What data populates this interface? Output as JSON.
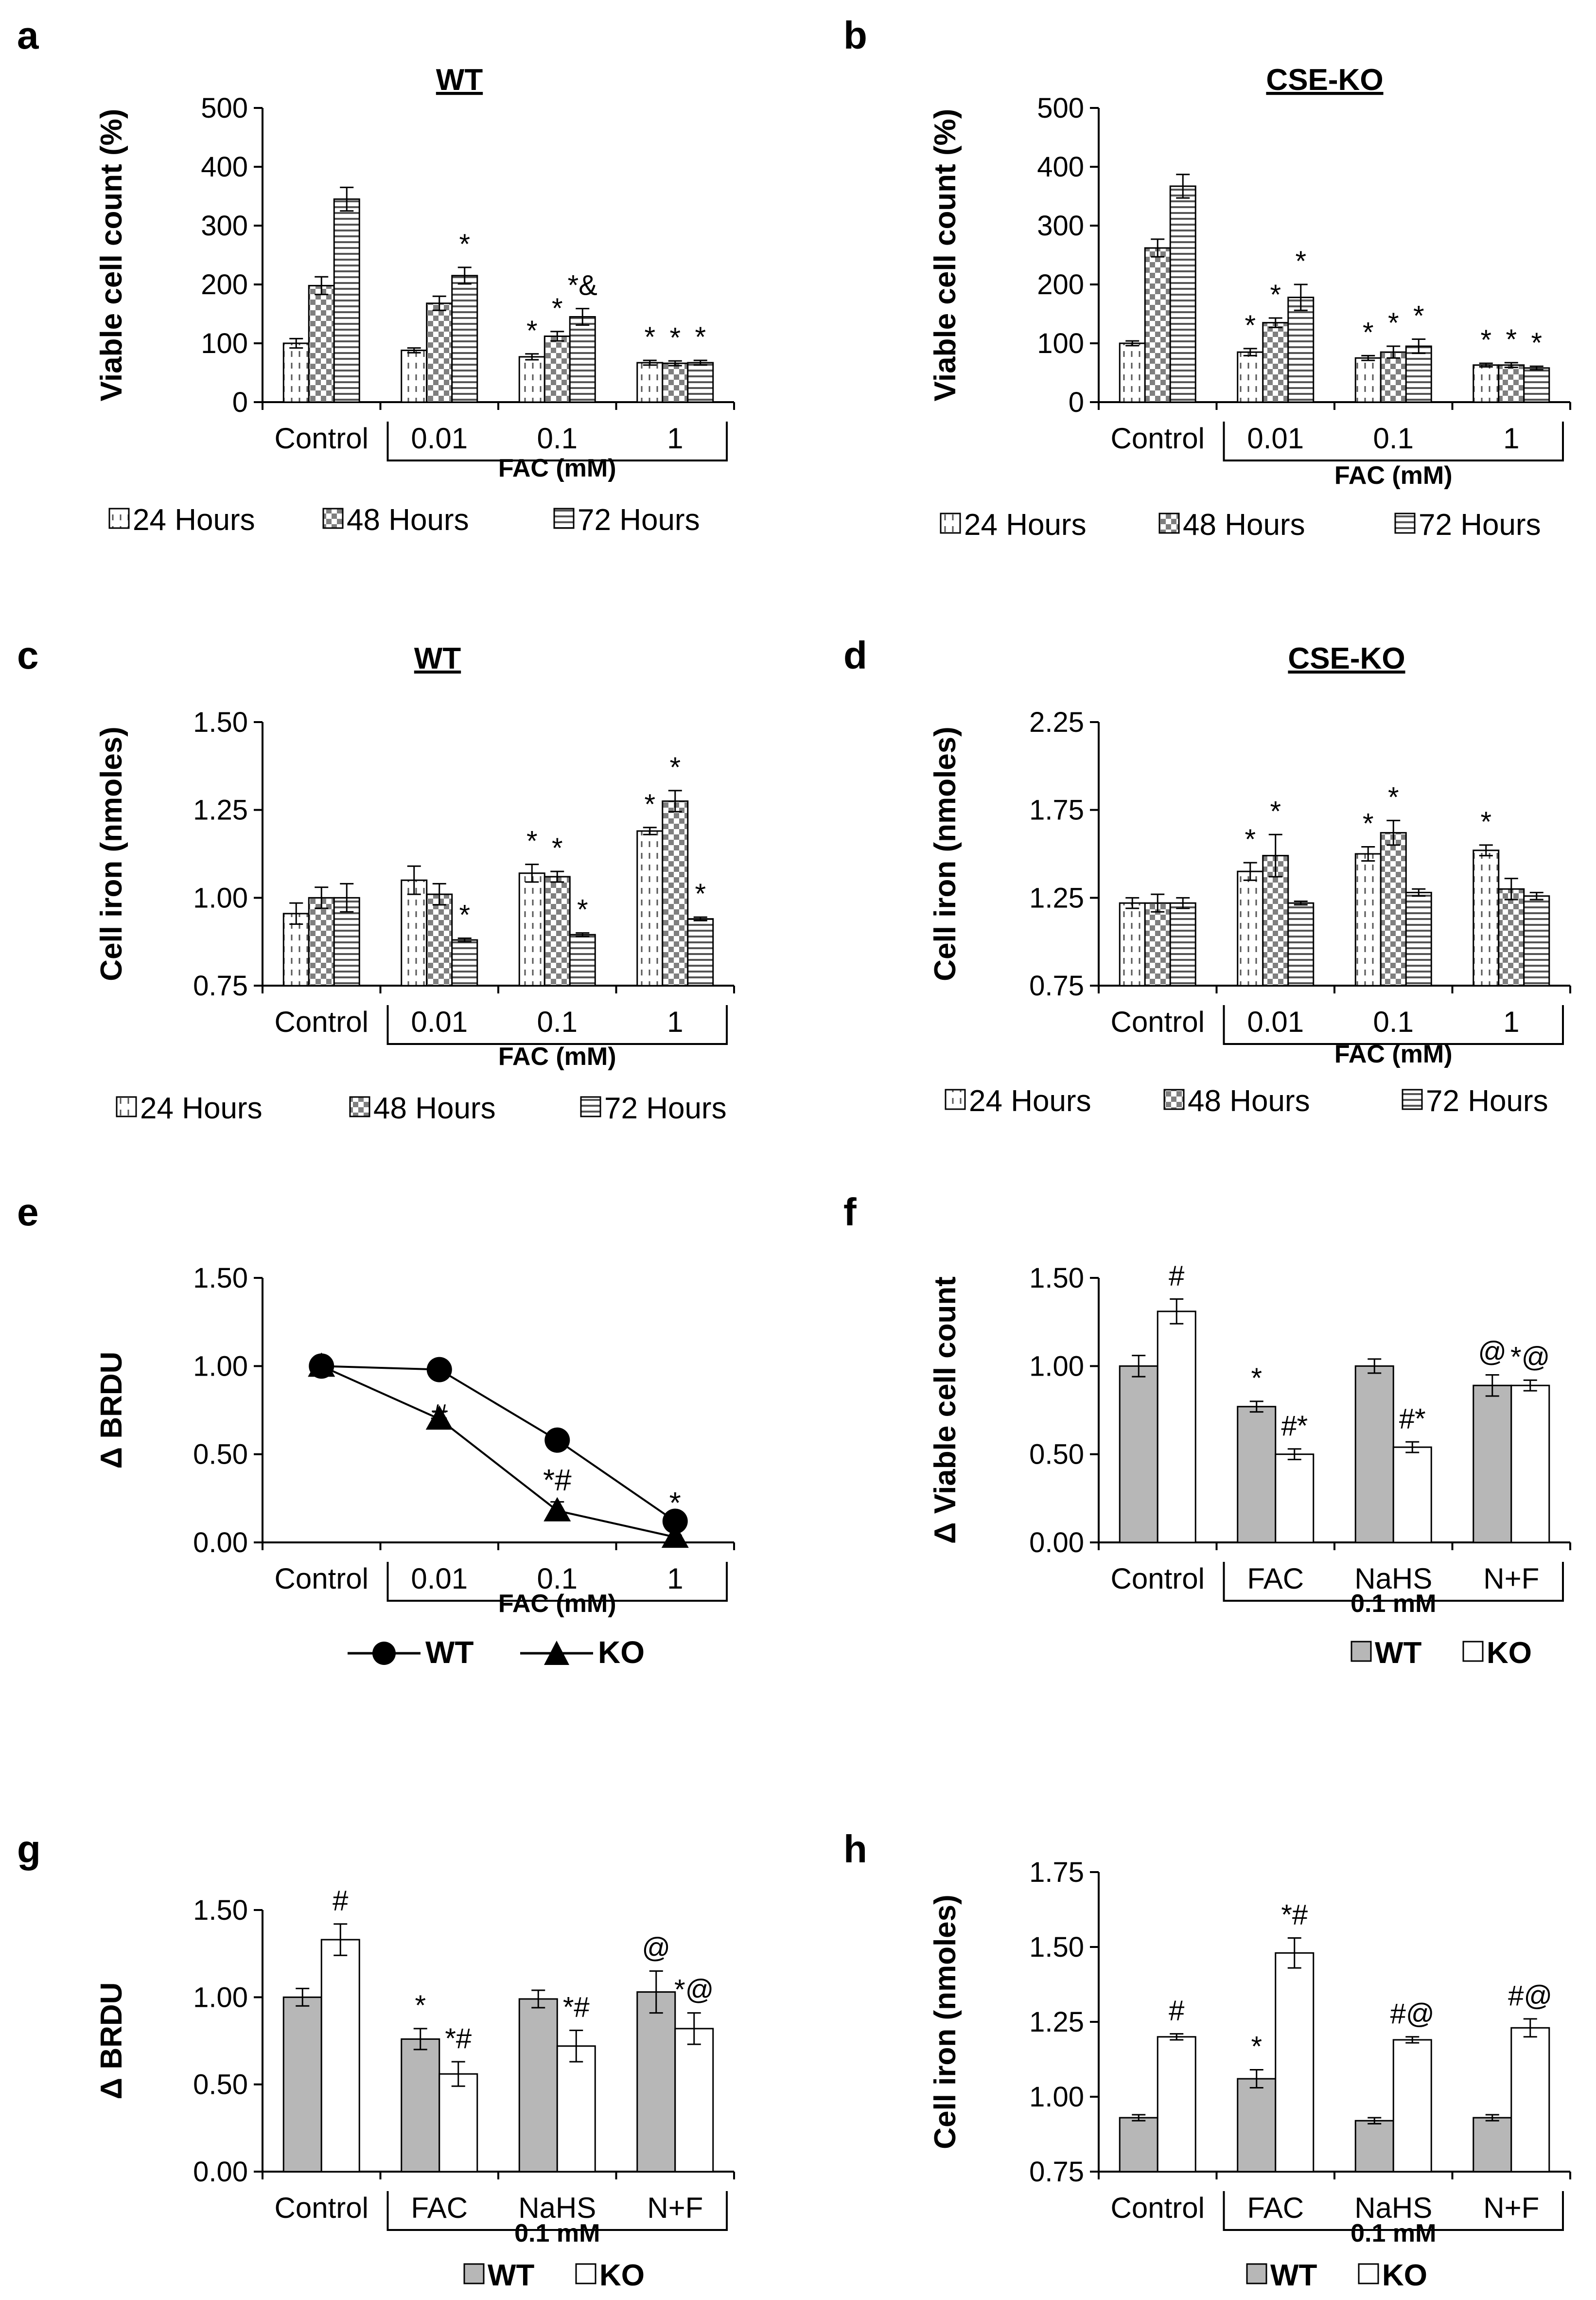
{
  "colors": {
    "axis": "#000000",
    "gray_fill": "#b7b7b7",
    "white_fill": "#ffffff",
    "line": "#000000"
  },
  "chart_data": [
    {
      "id": "a",
      "type": "bar",
      "panel_label": "a",
      "title": "WT",
      "ylabel": "Viable cell count (%)",
      "ylim": [
        0,
        500
      ],
      "yticks": [
        "0",
        "100",
        "200",
        "300",
        "400",
        "500"
      ],
      "categories": [
        "Control",
        "0.01",
        "0.1",
        "1"
      ],
      "group_label": "FAC (mM)",
      "series": [
        {
          "name": "24 Hours",
          "pattern": "vdash",
          "values": [
            100,
            88,
            77,
            67
          ],
          "errors": [
            8,
            4,
            5,
            4
          ]
        },
        {
          "name": "48 Hours",
          "pattern": "check",
          "values": [
            198,
            168,
            112,
            66
          ],
          "errors": [
            15,
            12,
            8,
            4
          ]
        },
        {
          "name": "72 Hours",
          "pattern": "hstripe",
          "values": [
            345,
            215,
            145,
            67
          ],
          "errors": [
            20,
            14,
            14,
            4
          ]
        }
      ],
      "annotations": [
        [
          "",
          "",
          ""
        ],
        [
          "",
          "",
          "*"
        ],
        [
          "*",
          "*",
          "*&"
        ],
        [
          "*",
          "*",
          "*"
        ]
      ],
      "legend": [
        "24 Hours",
        "48 Hours",
        "72 Hours"
      ]
    },
    {
      "id": "b",
      "type": "bar",
      "panel_label": "b",
      "title": "CSE-KO",
      "ylabel": "Viable cell count (%)",
      "ylim": [
        0,
        500
      ],
      "yticks": [
        "0",
        "100",
        "200",
        "300",
        "400",
        "500"
      ],
      "categories": [
        "Control",
        "0.01",
        "0.1",
        "1"
      ],
      "group_label": "FAC (mM)",
      "series": [
        {
          "name": "24 Hours",
          "pattern": "vdash",
          "values": [
            100,
            85,
            75,
            63
          ],
          "errors": [
            4,
            6,
            4,
            3
          ]
        },
        {
          "name": "48 Hours",
          "pattern": "check",
          "values": [
            262,
            135,
            85,
            63
          ],
          "errors": [
            15,
            8,
            10,
            4
          ]
        },
        {
          "name": "72 Hours",
          "pattern": "hstripe",
          "values": [
            367,
            178,
            95,
            58
          ],
          "errors": [
            20,
            22,
            12,
            3
          ]
        }
      ],
      "annotations": [
        [
          "",
          "",
          ""
        ],
        [
          "*",
          "*",
          "*"
        ],
        [
          "*",
          "*",
          "*"
        ],
        [
          "*",
          "*",
          "*"
        ]
      ],
      "legend": [
        "24 Hours",
        "48 Hours",
        "72 Hours"
      ]
    },
    {
      "id": "c",
      "type": "bar",
      "panel_label": "c",
      "title": "WT",
      "ylabel": "Cell iron (nmoles)",
      "ylim": [
        0.75,
        1.5
      ],
      "yticks": [
        "0.75",
        "1.00",
        "1.25",
        "1.50"
      ],
      "categories": [
        "Control",
        "0.01",
        "0.1",
        "1"
      ],
      "group_label": "FAC (mM)",
      "series": [
        {
          "name": "24 Hours",
          "pattern": "vdash",
          "values": [
            0.955,
            1.05,
            1.07,
            1.19
          ],
          "errors": [
            0.03,
            0.04,
            0.025,
            0.01
          ]
        },
        {
          "name": "48 Hours",
          "pattern": "check",
          "values": [
            1.0,
            1.01,
            1.06,
            1.275
          ],
          "errors": [
            0.03,
            0.03,
            0.015,
            0.03
          ]
        },
        {
          "name": "72 Hours",
          "pattern": "hstripe",
          "values": [
            1.0,
            0.88,
            0.895,
            0.94
          ],
          "errors": [
            0.04,
            0.005,
            0.005,
            0.005
          ]
        }
      ],
      "annotations": [
        [
          "",
          "",
          ""
        ],
        [
          "",
          "",
          "*"
        ],
        [
          "*",
          "*",
          "*"
        ],
        [
          "*",
          "*",
          "*"
        ]
      ],
      "legend": [
        "24 Hours",
        "48 Hours",
        "72 Hours"
      ]
    },
    {
      "id": "d",
      "type": "bar",
      "panel_label": "d",
      "title": "CSE-KO",
      "ylabel": "Cell iron (nmoles)",
      "ylim": [
        0.75,
        2.25
      ],
      "yticks": [
        "0.75",
        "1.25",
        "1.75",
        "2.25"
      ],
      "categories": [
        "Control",
        "0.01",
        "0.1",
        "1"
      ],
      "group_label": "FAC (mM)",
      "series": [
        {
          "name": "24 Hours",
          "pattern": "vdash",
          "values": [
            1.22,
            1.4,
            1.5,
            1.52
          ],
          "errors": [
            0.03,
            0.05,
            0.04,
            0.03
          ]
        },
        {
          "name": "48 Hours",
          "pattern": "check",
          "values": [
            1.22,
            1.49,
            1.62,
            1.3
          ],
          "errors": [
            0.05,
            0.12,
            0.07,
            0.06
          ]
        },
        {
          "name": "72 Hours",
          "pattern": "hstripe",
          "values": [
            1.22,
            1.22,
            1.28,
            1.26
          ],
          "errors": [
            0.03,
            0.01,
            0.02,
            0.02
          ]
        }
      ],
      "annotations": [
        [
          "",
          "",
          ""
        ],
        [
          "*",
          "*",
          ""
        ],
        [
          "*",
          "*",
          ""
        ],
        [
          "*",
          "",
          ""
        ]
      ],
      "legend": [
        "24 Hours",
        "48 Hours",
        "72 Hours"
      ]
    },
    {
      "id": "e",
      "type": "line",
      "panel_label": "e",
      "title": "",
      "ylabel": "Δ BRDU",
      "ylim": [
        0,
        1.5
      ],
      "yticks": [
        "0.00",
        "0.50",
        "1.00",
        "1.50"
      ],
      "categories": [
        "Control",
        "0.01",
        "0.1",
        "1"
      ],
      "group_label": "FAC (mM)",
      "series": [
        {
          "name": "WT",
          "marker": "circle",
          "values": [
            1.0,
            0.98,
            0.58,
            0.12
          ],
          "errors": [
            0.04,
            0.02,
            0.05,
            0.02
          ]
        },
        {
          "name": "KO",
          "marker": "triangle",
          "values": [
            1.0,
            0.7,
            0.18,
            0.03
          ],
          "errors": [
            0.04,
            0.04,
            0.05,
            0.01
          ]
        }
      ],
      "annotations": [
        {
          "category": 1,
          "value": 0.72,
          "text": "#"
        },
        {
          "category": 2,
          "value": 0.35,
          "text": "*#"
        },
        {
          "category": 3,
          "value": 0.22,
          "text": "*"
        }
      ],
      "legend": [
        "WT",
        "KO"
      ]
    },
    {
      "id": "f",
      "type": "bar",
      "panel_label": "f",
      "title": "",
      "ylabel": "Δ Viable cell count",
      "ylim": [
        0,
        1.5
      ],
      "yticks": [
        "0.00",
        "0.50",
        "1.00",
        "1.50"
      ],
      "categories": [
        "Control",
        "FAC",
        "NaHS",
        "N+F"
      ],
      "group_label": "0.1 mM",
      "series": [
        {
          "name": "WT",
          "pattern": "gray",
          "values": [
            1.0,
            0.77,
            1.0,
            0.89
          ],
          "errors": [
            0.06,
            0.03,
            0.04,
            0.06
          ]
        },
        {
          "name": "KO",
          "pattern": "white",
          "values": [
            1.31,
            0.5,
            0.54,
            0.89
          ],
          "errors": [
            0.07,
            0.03,
            0.03,
            0.03
          ]
        }
      ],
      "annotations": [
        [
          "",
          "#"
        ],
        [
          "*",
          "#*"
        ],
        [
          "",
          "#*"
        ],
        [
          "@",
          "*@"
        ]
      ],
      "legend": [
        "WT",
        "KO"
      ]
    },
    {
      "id": "g",
      "type": "bar",
      "panel_label": "g",
      "title": "",
      "ylabel": "Δ BRDU",
      "ylim": [
        0,
        1.5
      ],
      "yticks": [
        "0.00",
        "0.50",
        "1.00",
        "1.50"
      ],
      "categories": [
        "Control",
        "FAC",
        "NaHS",
        "N+F"
      ],
      "group_label": "0.1 mM",
      "series": [
        {
          "name": "WT",
          "pattern": "gray",
          "values": [
            1.0,
            0.76,
            0.99,
            1.03
          ],
          "errors": [
            0.05,
            0.06,
            0.05,
            0.12
          ]
        },
        {
          "name": "KO",
          "pattern": "white",
          "values": [
            1.33,
            0.56,
            0.72,
            0.82
          ],
          "errors": [
            0.09,
            0.07,
            0.09,
            0.09
          ]
        }
      ],
      "annotations": [
        [
          "",
          "#"
        ],
        [
          "*",
          "*#"
        ],
        [
          "",
          "*#"
        ],
        [
          "@",
          "*@"
        ]
      ],
      "legend": [
        "WT",
        "KO"
      ]
    },
    {
      "id": "h",
      "type": "bar",
      "panel_label": "h",
      "title": "",
      "ylabel": "Cell iron (nmoles)",
      "ylim": [
        0.75,
        1.75
      ],
      "yticks": [
        "0.75",
        "1.00",
        "1.25",
        "1.50",
        "1.75"
      ],
      "categories": [
        "Control",
        "FAC",
        "NaHS",
        "N+F"
      ],
      "group_label": "0.1 mM",
      "series": [
        {
          "name": "WT",
          "pattern": "gray",
          "values": [
            0.93,
            1.06,
            0.92,
            0.93
          ],
          "errors": [
            0.01,
            0.03,
            0.01,
            0.01
          ]
        },
        {
          "name": "KO",
          "pattern": "white",
          "values": [
            1.2,
            1.48,
            1.19,
            1.23
          ],
          "errors": [
            0.01,
            0.05,
            0.01,
            0.03
          ]
        }
      ],
      "annotations": [
        [
          "",
          "#"
        ],
        [
          "*",
          "*#"
        ],
        [
          "",
          "#@"
        ],
        [
          "",
          "#@"
        ]
      ],
      "legend": [
        "WT",
        "KO"
      ]
    }
  ]
}
